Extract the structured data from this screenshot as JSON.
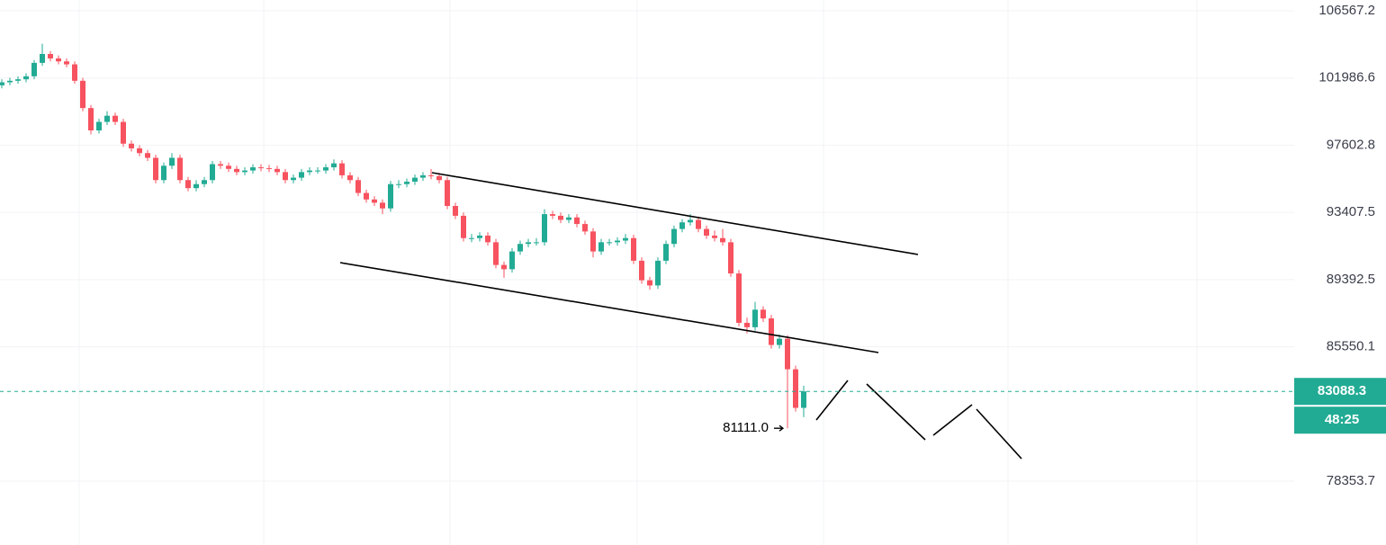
{
  "chart_data": {
    "type": "candlestick",
    "log_scale": true,
    "grid": true,
    "up_color": "#22ab94",
    "down_color": "#f7525f",
    "ylim": [
      75150,
      107322
    ],
    "yticks": [
      {
        "value": 106567.2,
        "label": "106567.2"
      },
      {
        "value": 101986.6,
        "label": "101986.6"
      },
      {
        "value": 97602.8,
        "label": "97602.8"
      },
      {
        "value": 93407.5,
        "label": "93407.5"
      },
      {
        "value": 89392.5,
        "label": "89392.5"
      },
      {
        "value": 85550.1,
        "label": "85550.1"
      },
      {
        "value": 78353.7,
        "label": "78353.7"
      }
    ],
    "countdown": "48:25",
    "low_annotation": {
      "value": 81111,
      "label": "81111.0"
    },
    "open": [
      101500,
      101700,
      101800,
      101900,
      102100,
      103000,
      103600,
      103300,
      103100,
      102900,
      101800,
      100000,
      98550,
      99100,
      99500,
      99100,
      97700,
      97400,
      97100,
      96800,
      95400,
      96300,
      96800,
      95400,
      94900,
      95150,
      95400,
      96400,
      96300,
      96100,
      95900,
      96000,
      96200,
      96150,
      96100,
      95900,
      95400,
      95550,
      95900,
      96000,
      96000,
      96200,
      96450,
      95700,
      95400,
      94600,
      94200,
      94000,
      93650,
      95150,
      95150,
      95300,
      95550,
      95700,
      95650,
      95400,
      93800,
      93200,
      91850,
      91850,
      92000,
      91600,
      90250,
      90000,
      91050,
      91500,
      91600,
      91600,
      93300,
      93200,
      92950,
      93100,
      92700,
      92250,
      91050,
      91600,
      91600,
      91700,
      91850,
      90500,
      89350,
      89050,
      90500,
      91500,
      92400,
      92800,
      92950,
      92400,
      92000,
      91850,
      91600,
      89750,
      86900,
      86650,
      87650,
      87150,
      85650,
      86000,
      84300,
      82200
    ],
    "high": [
      101900,
      102000,
      102100,
      102300,
      103200,
      104300,
      103800,
      103500,
      103300,
      103100,
      102000,
      100200,
      99300,
      99800,
      99700,
      99300,
      97900,
      97600,
      97300,
      97000,
      96500,
      97100,
      97000,
      95600,
      95400,
      95600,
      96600,
      96600,
      96500,
      96300,
      96200,
      96400,
      96400,
      96350,
      96300,
      96100,
      95750,
      96100,
      96200,
      96200,
      96400,
      96700,
      96650,
      95900,
      95600,
      94800,
      94400,
      94200,
      95350,
      95400,
      95500,
      95750,
      95900,
      96100,
      95850,
      95600,
      94000,
      93400,
      92100,
      92200,
      92200,
      91800,
      90450,
      91250,
      91700,
      91800,
      91850,
      93600,
      93500,
      93400,
      93300,
      93300,
      92900,
      92450,
      91800,
      91800,
      91900,
      92100,
      92050,
      90700,
      89550,
      90700,
      91700,
      92600,
      93000,
      93300,
      93150,
      92600,
      92300,
      92400,
      91800,
      89950,
      87200,
      88100,
      87850,
      87350,
      86250,
      86200,
      84500,
      83400
    ],
    "low": [
      101300,
      101500,
      101600,
      101700,
      101900,
      102800,
      103100,
      102900,
      102700,
      101600,
      99800,
      98300,
      98350,
      98900,
      98900,
      97500,
      97200,
      96900,
      96600,
      95200,
      95200,
      96100,
      95200,
      94700,
      94700,
      94950,
      95200,
      96100,
      95900,
      95700,
      95700,
      95800,
      95950,
      95900,
      95700,
      95200,
      95200,
      95350,
      95700,
      95800,
      95800,
      96000,
      95500,
      95200,
      94400,
      94000,
      93800,
      93300,
      93450,
      94900,
      94950,
      95100,
      95350,
      95450,
      95200,
      93600,
      93000,
      91650,
      91600,
      91650,
      91400,
      90050,
      89500,
      89800,
      90850,
      91300,
      91400,
      91400,
      93000,
      92750,
      92750,
      92500,
      92050,
      90700,
      90850,
      91400,
      91400,
      91500,
      90300,
      89150,
      88800,
      88850,
      90300,
      91300,
      92200,
      92600,
      92200,
      91800,
      91650,
      91400,
      89550,
      86700,
      86300,
      86450,
      86950,
      85450,
      85450,
      81111,
      82000,
      81700
    ],
    "close": [
      101700,
      101800,
      101900,
      102100,
      103000,
      103600,
      103300,
      103100,
      102900,
      101800,
      100000,
      98550,
      99100,
      99500,
      99100,
      97700,
      97400,
      97100,
      96800,
      95400,
      96300,
      96800,
      95400,
      94900,
      95150,
      95400,
      96400,
      96300,
      96100,
      95900,
      96000,
      96200,
      96150,
      96100,
      95900,
      95400,
      95550,
      95900,
      96000,
      96000,
      96200,
      96450,
      95700,
      95400,
      94600,
      94200,
      94000,
      93650,
      95150,
      95150,
      95300,
      95550,
      95700,
      95650,
      95400,
      93800,
      93200,
      91850,
      91850,
      92000,
      91600,
      90250,
      90000,
      91050,
      91500,
      91600,
      91600,
      93300,
      93200,
      92950,
      93100,
      92700,
      92250,
      91050,
      91600,
      91600,
      91700,
      91850,
      90500,
      89350,
      89050,
      90500,
      91500,
      92400,
      92800,
      92950,
      92400,
      92000,
      91850,
      91600,
      89750,
      86900,
      86650,
      87650,
      87150,
      85650,
      86000,
      84300,
      82200,
      83088.3
    ]
  }
}
